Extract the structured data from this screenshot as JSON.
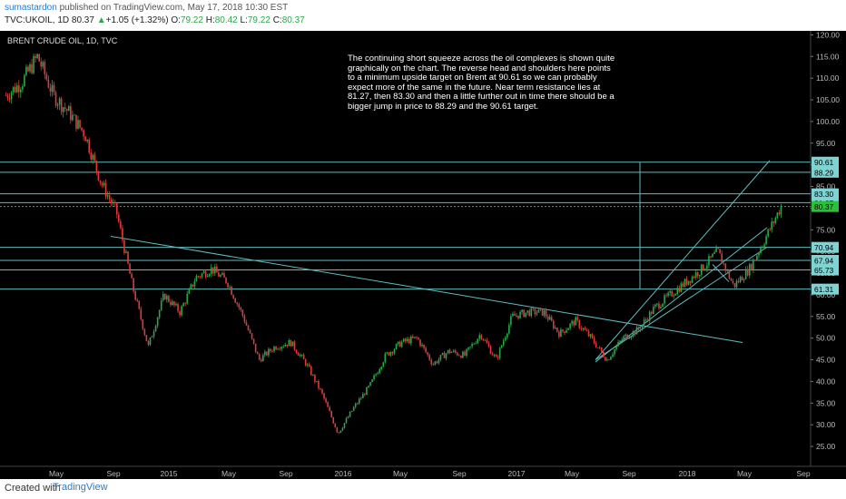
{
  "header": {
    "author": "sumastardon",
    "published_text": "published on TradingView.com, May 17, 2018 10:30 EST",
    "symbol_line": "TVC:UKOIL, 1D 80.37",
    "change_arrow": "▲",
    "change": "+1.05 (+1.32%)",
    "o_label": "O:",
    "o_value": "79.22",
    "h_label": "H:",
    "h_value": "80.42",
    "l_label": "L:",
    "l_value": "79.22",
    "c_label": "C:",
    "c_value": "80.37"
  },
  "chart_title": "BRENT CRUDE OIL, 1D, TVC",
  "annotation": "The continuing short squeeze across the oil complexes is shown quite graphically on the chart. The reverse head and shoulders here points to a minimum upside target on Brent at 90.61 so we can probably expect more of the same in the future. Near term resistance lies at 81.27, then 83.30 and then a little further out in time there should be a bigger jump in price to 88.29 and the 90.61 target.",
  "footer": {
    "created_with": "Created with",
    "brand": "TradingView"
  },
  "colors": {
    "background": "#000000",
    "up": "#29a84a",
    "down": "#e03a3a",
    "level_line": "#5fbdbd",
    "price_tag_bg": "#7fd3d3",
    "current_price_bg": "#2ebf3a"
  },
  "chart_data": {
    "type": "candlestick",
    "title": "BRENT CRUDE OIL, 1D, TVC",
    "x_ticks": [
      "May",
      "Sep",
      "2015",
      "May",
      "Sep",
      "2016",
      "May",
      "Sep",
      "2017",
      "May",
      "Sep",
      "2018",
      "May",
      "Sep"
    ],
    "y_ticks": [
      120,
      115,
      110,
      105,
      100,
      95,
      90,
      85,
      80,
      75,
      70,
      65,
      60,
      55,
      50,
      45,
      40,
      35,
      30,
      25
    ],
    "y_tick_labels": [
      "120.00",
      "115.00",
      "110.00",
      "105.00",
      "100.00",
      "95.00",
      "90.00",
      "85.00",
      "80.00",
      "75.00",
      "70.00",
      "65.00",
      "60.00",
      "55.00",
      "50.00",
      "45.00",
      "40.00",
      "35.00",
      "30.00",
      "25.00"
    ],
    "ylim": [
      22.5,
      120.5
    ],
    "horizontal_levels": [
      {
        "value": 90.61,
        "label": "90.61"
      },
      {
        "value": 88.29,
        "label": "88.29"
      },
      {
        "value": 83.3,
        "label": "83.30"
      },
      {
        "value": 81.27,
        "label": "81.27"
      },
      {
        "value": 70.94,
        "label": "70.94"
      },
      {
        "value": 67.94,
        "label": "67.94"
      },
      {
        "value": 65.73,
        "label": "65.73"
      },
      {
        "value": 61.31,
        "label": "61.31"
      }
    ],
    "current_price": {
      "value": 80.37,
      "label": "80.37"
    },
    "price_path": [
      {
        "x": "2014-04",
        "y": 106
      },
      {
        "x": "2014-05",
        "y": 109
      },
      {
        "x": "2014-06",
        "y": 115
      },
      {
        "x": "2014-07",
        "y": 106
      },
      {
        "x": "2014-08",
        "y": 102
      },
      {
        "x": "2014-09",
        "y": 97
      },
      {
        "x": "2014-10",
        "y": 86
      },
      {
        "x": "2014-11",
        "y": 79
      },
      {
        "x": "2014-12",
        "y": 62
      },
      {
        "x": "2015-01",
        "y": 48
      },
      {
        "x": "2015-02",
        "y": 60
      },
      {
        "x": "2015-03",
        "y": 56
      },
      {
        "x": "2015-04",
        "y": 64
      },
      {
        "x": "2015-05",
        "y": 66
      },
      {
        "x": "2015-06",
        "y": 63
      },
      {
        "x": "2015-07",
        "y": 55
      },
      {
        "x": "2015-08",
        "y": 45
      },
      {
        "x": "2015-09",
        "y": 48
      },
      {
        "x": "2015-10",
        "y": 49
      },
      {
        "x": "2015-11",
        "y": 44
      },
      {
        "x": "2015-12",
        "y": 37
      },
      {
        "x": "2016-01",
        "y": 28
      },
      {
        "x": "2016-02",
        "y": 34
      },
      {
        "x": "2016-03",
        "y": 39
      },
      {
        "x": "2016-04",
        "y": 46
      },
      {
        "x": "2016-05",
        "y": 49
      },
      {
        "x": "2016-06",
        "y": 50
      },
      {
        "x": "2016-07",
        "y": 44
      },
      {
        "x": "2016-08",
        "y": 47
      },
      {
        "x": "2016-09",
        "y": 46
      },
      {
        "x": "2016-10",
        "y": 51
      },
      {
        "x": "2016-11",
        "y": 45
      },
      {
        "x": "2016-12",
        "y": 55
      },
      {
        "x": "2017-01",
        "y": 56
      },
      {
        "x": "2017-02",
        "y": 56
      },
      {
        "x": "2017-03",
        "y": 51
      },
      {
        "x": "2017-04",
        "y": 54
      },
      {
        "x": "2017-05",
        "y": 50
      },
      {
        "x": "2017-06",
        "y": 45
      },
      {
        "x": "2017-07",
        "y": 50
      },
      {
        "x": "2017-08",
        "y": 52
      },
      {
        "x": "2017-09",
        "y": 57
      },
      {
        "x": "2017-10",
        "y": 60
      },
      {
        "x": "2017-11",
        "y": 63
      },
      {
        "x": "2017-12",
        "y": 66
      },
      {
        "x": "2018-01",
        "y": 70
      },
      {
        "x": "2018-02",
        "y": 62
      },
      {
        "x": "2018-03",
        "y": 66
      },
      {
        "x": "2018-04",
        "y": 73
      },
      {
        "x": "2018-05",
        "y": 80.37
      }
    ]
  }
}
